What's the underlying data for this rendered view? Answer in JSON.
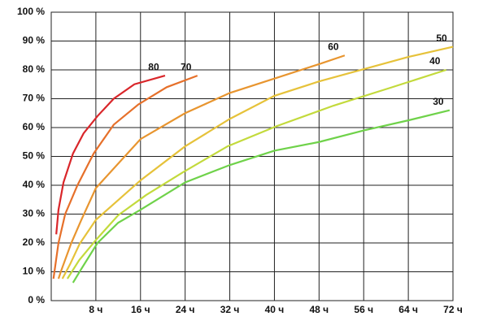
{
  "chart_data": {
    "type": "line",
    "xlim": [
      0,
      72
    ],
    "ylim": [
      0,
      100
    ],
    "xticks": [
      {
        "value": 8,
        "label": "8 ч"
      },
      {
        "value": 16,
        "label": "16 ч"
      },
      {
        "value": 24,
        "label": "24 ч"
      },
      {
        "value": 32,
        "label": "32 ч"
      },
      {
        "value": 40,
        "label": "40 ч"
      },
      {
        "value": 48,
        "label": "48 ч"
      },
      {
        "value": 56,
        "label": "56 ч"
      },
      {
        "value": 64,
        "label": "64 ч"
      },
      {
        "value": 72,
        "label": "72 ч"
      }
    ],
    "yticks": [
      {
        "value": 0,
        "label": "0 %"
      },
      {
        "value": 10,
        "label": "10 %"
      },
      {
        "value": 20,
        "label": "20 %"
      },
      {
        "value": 30,
        "label": "30 %"
      },
      {
        "value": 40,
        "label": "40 %"
      },
      {
        "value": 50,
        "label": "50 %"
      },
      {
        "value": 60,
        "label": "60 %"
      },
      {
        "value": 70,
        "label": "70 %"
      },
      {
        "value": 80,
        "label": "80 %"
      },
      {
        "value": 90,
        "label": "90 %"
      },
      {
        "value": 100,
        "label": "100 %"
      }
    ],
    "grid": true,
    "series": [
      {
        "name": "80",
        "color": "#d9262a",
        "x": [
          0.9,
          1.3,
          2.2,
          3.9,
          5.8,
          8.3,
          11.2,
          14.9,
          20.4
        ],
        "values": [
          23,
          31.5,
          41,
          51,
          58,
          64,
          70,
          75,
          78
        ]
      },
      {
        "name": "70",
        "color": "#e6702a",
        "x": [
          0.4,
          1.3,
          2.5,
          4.7,
          7.6,
          11.2,
          15.6,
          20.7,
          26.2
        ],
        "values": [
          7.6,
          20,
          30,
          40,
          51,
          61,
          68,
          74,
          78
        ]
      },
      {
        "name": "60",
        "color": "#e8952f",
        "x": [
          1.3,
          1.9,
          3.6,
          5.4,
          8,
          16,
          24,
          32,
          40,
          48,
          52.6
        ],
        "values": [
          7.6,
          11,
          20,
          28,
          39,
          56,
          65,
          72,
          77,
          82,
          85
        ]
      },
      {
        "name": "50",
        "color": "#e6c23a",
        "x": [
          2,
          3.4,
          5.1,
          8,
          16,
          24,
          32,
          40,
          48,
          64,
          72
        ],
        "values": [
          7.6,
          12.7,
          19.7,
          28,
          41.7,
          53.5,
          63,
          71,
          76,
          84.5,
          88
        ]
      },
      {
        "name": "40",
        "color": "#c3da3c",
        "x": [
          2.9,
          5,
          8,
          12,
          17,
          23.6,
          31.6,
          40.4,
          50.6,
          60.8,
          70.8
        ],
        "values": [
          7.6,
          14,
          21,
          29.6,
          36.6,
          44.5,
          53.5,
          60.5,
          67.6,
          73.8,
          80
        ]
      },
      {
        "name": "30",
        "color": "#6fd24a",
        "x": [
          3.9,
          5.4,
          8.3,
          12,
          16,
          24,
          32,
          40,
          48,
          56,
          64,
          71.4
        ],
        "values": [
          6.2,
          11,
          20,
          27,
          31.5,
          41,
          47,
          52,
          55,
          59,
          62.5,
          66
        ]
      }
    ]
  }
}
